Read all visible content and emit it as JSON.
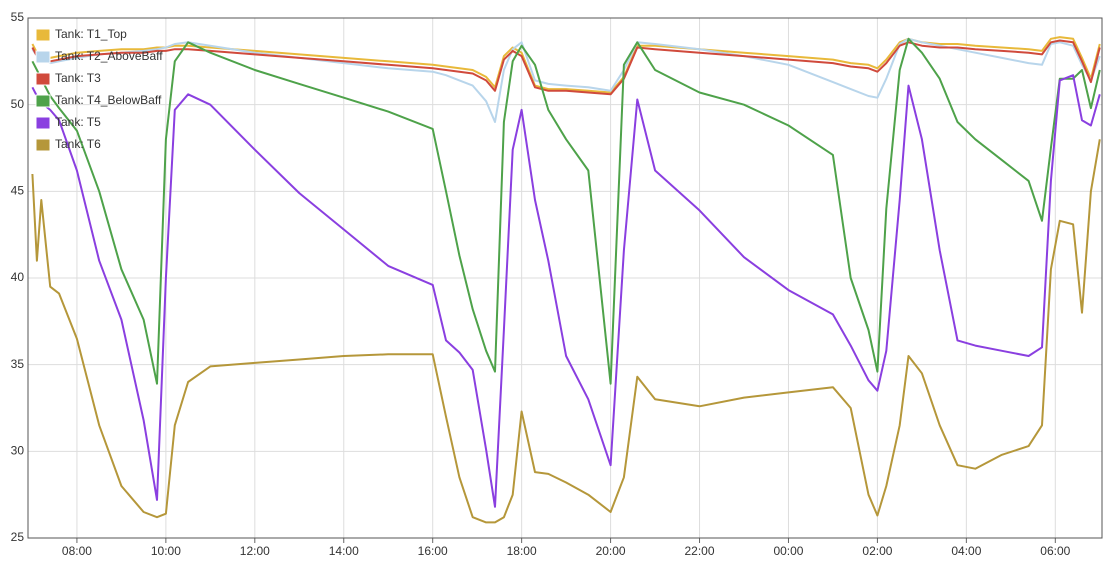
{
  "chart_data": {
    "type": "line",
    "x": [
      7.0,
      7.1,
      7.2,
      7.4,
      7.6,
      8.0,
      8.5,
      9.0,
      9.5,
      9.8,
      10.0,
      10.2,
      10.5,
      11,
      12,
      13,
      14,
      15,
      16,
      16.3,
      16.6,
      16.9,
      17.2,
      17.4,
      17.6,
      17.8,
      18.0,
      18.3,
      18.6,
      19.0,
      19.5,
      20.0,
      20.3,
      20.6,
      21,
      22,
      23,
      24,
      25,
      25.4,
      25.8,
      26.0,
      26.2,
      26.5,
      26.7,
      27.0,
      27.4,
      27.8,
      28.2,
      28.8,
      29.4,
      29.7,
      29.9,
      30.1,
      30.4,
      30.6,
      30.8,
      31.0
    ],
    "xlim": [
      6.9,
      31.05
    ],
    "xticks": [
      {
        "value": 8,
        "label": "08:00"
      },
      {
        "value": 10,
        "label": "10:00"
      },
      {
        "value": 12,
        "label": "12:00"
      },
      {
        "value": 14,
        "label": "14:00"
      },
      {
        "value": 16,
        "label": "16:00"
      },
      {
        "value": 18,
        "label": "18:00"
      },
      {
        "value": 20,
        "label": "20:00"
      },
      {
        "value": 22,
        "label": "22:00"
      },
      {
        "value": 24,
        "label": "00:00"
      },
      {
        "value": 26,
        "label": "02:00"
      },
      {
        "value": 28,
        "label": "04:00"
      },
      {
        "value": 30,
        "label": "06:00"
      }
    ],
    "ylim": [
      25,
      55
    ],
    "yticks": [
      25,
      30,
      35,
      40,
      45,
      50,
      55
    ],
    "grid": true,
    "legend": "top-left",
    "series": [
      {
        "name": "Tank: T1_Top",
        "color": "#e8b93a",
        "values": [
          53.5,
          53.0,
          52.8,
          52.7,
          52.8,
          53.0,
          53.1,
          53.2,
          53.2,
          53.3,
          53.3,
          53.4,
          53.4,
          53.3,
          53.1,
          52.9,
          52.7,
          52.5,
          52.3,
          52.2,
          52.1,
          52.0,
          51.6,
          51.0,
          52.8,
          53.3,
          53.0,
          51.1,
          50.9,
          50.9,
          50.8,
          50.7,
          51.6,
          53.4,
          53.4,
          53.2,
          53.0,
          52.8,
          52.6,
          52.4,
          52.3,
          52.1,
          52.6,
          53.6,
          53.8,
          53.6,
          53.5,
          53.5,
          53.4,
          53.3,
          53.2,
          53.1,
          53.8,
          53.9,
          53.8,
          52.7,
          51.5,
          53.5
        ]
      },
      {
        "name": "Tank: T2_AboveBaff",
        "color": "#b8d5eb",
        "values": [
          53.2,
          52.8,
          52.6,
          52.4,
          52.5,
          52.7,
          52.9,
          53.0,
          53.1,
          53.2,
          53.3,
          53.5,
          53.6,
          53.4,
          53.0,
          52.7,
          52.4,
          52.1,
          51.9,
          51.7,
          51.4,
          51.1,
          50.2,
          49.0,
          52.0,
          53.2,
          53.6,
          51.4,
          51.2,
          51.1,
          51.0,
          50.8,
          52.0,
          53.6,
          53.5,
          53.2,
          52.8,
          52.3,
          51.3,
          50.9,
          50.5,
          50.4,
          51.5,
          53.5,
          53.8,
          53.6,
          53.4,
          53.2,
          53.0,
          52.7,
          52.4,
          52.3,
          53.5,
          53.6,
          53.4,
          52.3,
          51.4,
          52.8
        ]
      },
      {
        "name": "Tank: T3",
        "color": "#d04a3c",
        "values": [
          53.3,
          52.8,
          52.6,
          52.5,
          52.6,
          52.8,
          52.9,
          53.0,
          53.0,
          53.1,
          53.1,
          53.2,
          53.2,
          53.1,
          52.9,
          52.7,
          52.5,
          52.3,
          52.1,
          52.0,
          51.9,
          51.8,
          51.4,
          50.8,
          52.6,
          53.1,
          52.8,
          51.0,
          50.8,
          50.8,
          50.7,
          50.6,
          51.5,
          53.3,
          53.2,
          53.0,
          52.8,
          52.6,
          52.4,
          52.2,
          52.1,
          51.9,
          52.4,
          53.4,
          53.6,
          53.4,
          53.3,
          53.3,
          53.2,
          53.1,
          53.0,
          52.9,
          53.6,
          53.7,
          53.6,
          52.5,
          51.3,
          53.3
        ]
      },
      {
        "name": "Tank: T4_BelowBaff",
        "color": "#4ea24a",
        "values": [
          52.5,
          52.0,
          51.5,
          50.5,
          49.8,
          48.5,
          45.0,
          40.5,
          37.6,
          33.9,
          48.0,
          52.5,
          53.6,
          53.0,
          52.0,
          51.2,
          50.4,
          49.6,
          48.6,
          45.0,
          41.3,
          38.2,
          35.8,
          34.6,
          49.0,
          52.5,
          53.4,
          52.3,
          49.7,
          48.0,
          46.2,
          33.9,
          52.3,
          53.6,
          52.0,
          50.7,
          50.0,
          48.8,
          47.1,
          40.0,
          37.0,
          34.6,
          44.0,
          52.0,
          53.8,
          53.0,
          51.5,
          49.0,
          48.0,
          46.8,
          45.6,
          43.3,
          47.5,
          51.5,
          51.5,
          52.0,
          49.8,
          52.0
        ]
      },
      {
        "name": "Tank: T5",
        "color": "#8a3fe0",
        "values": [
          51.0,
          50.5,
          50.1,
          49.7,
          49.1,
          46.2,
          41.0,
          37.6,
          31.8,
          27.2,
          40.0,
          49.7,
          50.6,
          50.0,
          47.4,
          44.9,
          42.8,
          40.7,
          39.6,
          36.4,
          35.7,
          34.7,
          30.1,
          26.8,
          37.0,
          47.4,
          49.7,
          44.5,
          41.0,
          35.5,
          33.0,
          29.2,
          41.6,
          50.3,
          46.2,
          43.9,
          41.2,
          39.3,
          37.9,
          36.1,
          34.1,
          33.5,
          35.8,
          44.5,
          51.1,
          48.0,
          41.6,
          36.4,
          36.1,
          35.8,
          35.5,
          36.0,
          45.6,
          51.4,
          51.7,
          49.1,
          48.8,
          50.6
        ]
      },
      {
        "name": "Tank: T6",
        "color": "#b5973a",
        "values": [
          46.0,
          41.0,
          44.5,
          39.5,
          39.1,
          36.5,
          31.5,
          28.0,
          26.5,
          26.2,
          26.4,
          31.5,
          34.0,
          34.9,
          35.1,
          35.3,
          35.5,
          35.6,
          35.6,
          32.0,
          28.5,
          26.2,
          25.9,
          25.9,
          26.2,
          27.5,
          32.3,
          28.8,
          28.7,
          28.2,
          27.5,
          26.5,
          28.5,
          34.3,
          33.0,
          32.6,
          33.1,
          33.4,
          33.7,
          32.5,
          27.5,
          26.3,
          28.0,
          31.5,
          35.5,
          34.5,
          31.5,
          29.2,
          29.0,
          29.8,
          30.3,
          31.5,
          40.5,
          43.3,
          43.1,
          38.0,
          45.0,
          48.0
        ]
      }
    ]
  }
}
